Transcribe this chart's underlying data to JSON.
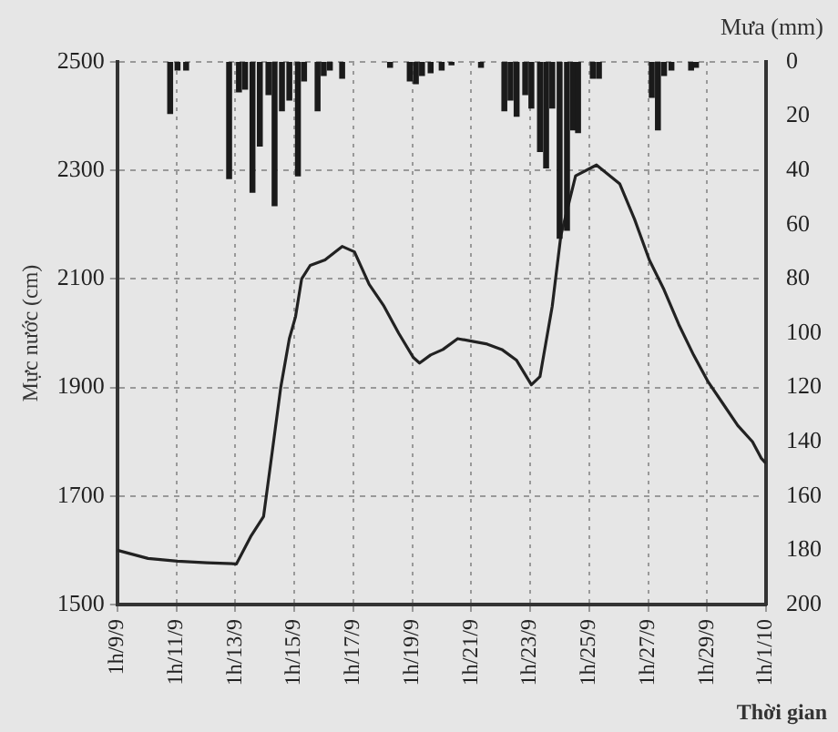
{
  "chart_data": {
    "type": "line",
    "xlabel": "Thời gian",
    "ylabel": "Mực nước (cm)",
    "y2label": "Mưa (mm)",
    "xlim": [
      "--09-09",
      "--10-01"
    ],
    "xticks": [
      {
        "value": "--09-09",
        "label": "1h/9/9"
      },
      {
        "value": "--09-11",
        "label": "1h/11/9"
      },
      {
        "value": "--09-13",
        "label": "1h/13/9"
      },
      {
        "value": "--09-15",
        "label": "1h/15/9"
      },
      {
        "value": "--09-17",
        "label": "1h/17/9"
      },
      {
        "value": "--09-19",
        "label": "1h/19/9"
      },
      {
        "value": "--09-21",
        "label": "1h/21/9"
      },
      {
        "value": "--09-23",
        "label": "1h/23/9"
      },
      {
        "value": "--09-25",
        "label": "1h/25/9"
      },
      {
        "value": "--09-27",
        "label": "1h/27/9"
      },
      {
        "value": "--09-29",
        "label": "1h/29/9"
      },
      {
        "value": "--10-01",
        "label": "1h/1/10"
      }
    ],
    "ylim": [
      1500,
      2500
    ],
    "yticks": [
      1500,
      1700,
      1900,
      2100,
      2300,
      2500
    ],
    "y2lim": [
      200,
      0
    ],
    "y2ticks": [
      0,
      20,
      40,
      60,
      80,
      100,
      120,
      140,
      160,
      180,
      200
    ],
    "grid": true,
    "legend": false,
    "marker": "none",
    "line_style": "solid",
    "series": [
      {
        "type": "bar",
        "axis": "y2",
        "color": "#1a1a1a",
        "x": [
          "--09-10T19:00",
          "--09-11T01:00",
          "--09-11T08:00",
          "--09-12T19:00",
          "--09-13T03:00",
          "--09-13T08:00",
          "--09-13T14:00",
          "--09-13T20:00",
          "--09-14T03:00",
          "--09-14T08:00",
          "--09-14T14:00",
          "--09-14T20:00",
          "--09-15T03:00",
          "--09-15T08:00",
          "--09-15T19:00",
          "--09-16T00:00",
          "--09-16T05:00",
          "--09-16T15:00",
          "--09-18T06:00",
          "--09-18T22:00",
          "--09-19T03:00",
          "--09-19T08:00",
          "--09-19T15:00",
          "--09-20T00:00",
          "--09-20T08:00",
          "--09-21T08:00",
          "--09-22T03:00",
          "--09-22T08:00",
          "--09-22T13:00",
          "--09-22T20:00",
          "--09-23T01:00",
          "--09-23T08:00",
          "--09-23T13:00",
          "--09-23T18:00",
          "--09-24T00:00",
          "--09-24T06:00",
          "--09-24T11:00",
          "--09-24T15:00",
          "--09-25T03:00",
          "--09-25T08:00",
          "--09-27T03:00",
          "--09-27T08:00",
          "--09-27T13:00",
          "--09-27T19:00",
          "--09-28T11:00",
          "--09-28T15:00"
        ],
        "values": [
          19,
          3,
          3,
          43,
          11,
          10,
          48,
          31,
          12,
          53,
          18,
          14,
          42,
          7,
          18,
          5,
          3,
          6,
          2,
          7,
          8,
          5,
          4,
          3,
          1,
          2,
          18,
          14,
          20,
          12,
          17,
          33,
          39,
          17,
          65,
          62,
          25,
          26,
          6,
          6,
          13,
          25,
          5,
          3,
          3,
          2
        ]
      },
      {
        "color": "#222222",
        "x": [
          "--09-09",
          "--09-10T01:00",
          "--09-11T01:00",
          "--09-12T01:00",
          "--09-13T01:00",
          "--09-13T13:00",
          "--09-13T23:00",
          "--09-14T06:00",
          "--09-14T13:00",
          "--09-14T20:00",
          "--09-15T01:00",
          "--09-15T06:00",
          "--09-15T13:00",
          "--09-16T01:00",
          "--09-16T15:00",
          "--09-17T01:00",
          "--09-17T13:00",
          "--09-18T01:00",
          "--09-18T13:00",
          "--09-19T01:00",
          "--09-19T06:00",
          "--09-19T15:00",
          "--09-20T01:00",
          "--09-20T13:00",
          "--09-21T01:00",
          "--09-21T13:00",
          "--09-22T01:00",
          "--09-22T13:00",
          "--09-23T01:00",
          "--09-23T08:00",
          "--09-23T18:00",
          "--09-24T01:00",
          "--09-24T13:00",
          "--09-25T06:00",
          "--09-26T01:00",
          "--09-26T13:00",
          "--09-27T01:00",
          "--09-27T13:00",
          "--09-28T01:00",
          "--09-28T13:00",
          "--09-29T01:00",
          "--09-29T13:00",
          "--09-30T01:00",
          "--09-30T13:00",
          "--09-30T20:00",
          "--10-01"
        ],
        "values": [
          1600,
          1585,
          1580,
          1577,
          1575,
          1627,
          1662,
          1780,
          1900,
          1990,
          2030,
          2100,
          2125,
          2135,
          2160,
          2150,
          2090,
          2050,
          2000,
          1955,
          1945,
          1960,
          1970,
          1990,
          1985,
          1980,
          1970,
          1950,
          1905,
          1920,
          2050,
          2180,
          2290,
          2310,
          2275,
          2210,
          2135,
          2080,
          2016,
          1960,
          1910,
          1870,
          1830,
          1800,
          1770,
          1760
        ]
      }
    ]
  }
}
